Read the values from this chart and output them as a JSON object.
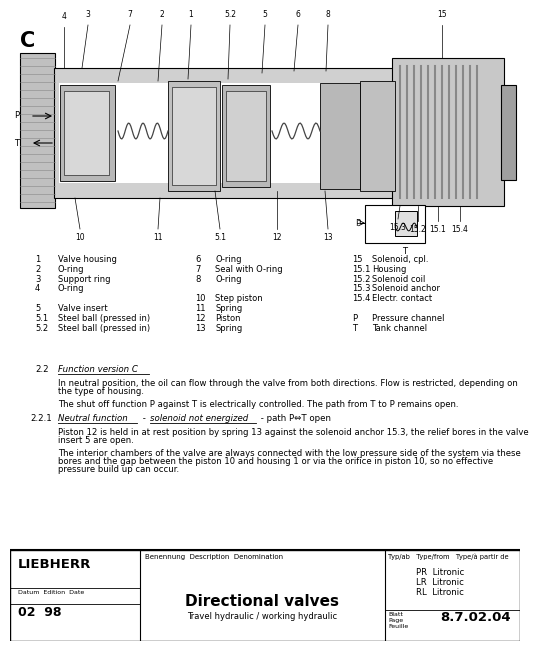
{
  "bg_color": "#ffffff",
  "legend_items_col1": [
    [
      "1",
      "Valve housing"
    ],
    [
      "2",
      "O-ring"
    ],
    [
      "3",
      "Support ring"
    ],
    [
      "4",
      "O-ring"
    ],
    [
      "",
      ""
    ],
    [
      "5",
      "Valve insert"
    ],
    [
      "5.1",
      "Steel ball (pressed in)"
    ],
    [
      "5.2",
      "Steel ball (pressed in)"
    ]
  ],
  "legend_items_col2": [
    [
      "6",
      "O-ring"
    ],
    [
      "7",
      "Seal with O-ring"
    ],
    [
      "8",
      "O-ring"
    ],
    [
      "",
      ""
    ],
    [
      "10",
      "Step piston"
    ],
    [
      "11",
      "Spring"
    ],
    [
      "12",
      "Piston"
    ],
    [
      "13",
      "Spring"
    ]
  ],
  "legend_items_col3": [
    [
      "15",
      "Solenoid, cpl."
    ],
    [
      "15.1",
      "Housing"
    ],
    [
      "15.2",
      "Solenoid coil"
    ],
    [
      "15.3",
      "Solenoid anchor"
    ],
    [
      "15.4",
      "Electr. contact"
    ],
    [
      "",
      ""
    ],
    [
      "P",
      "Pressure channel"
    ],
    [
      "T",
      "Tank channel"
    ]
  ],
  "para1": "In neutral position, the oil can flow through the valve from both directions. Flow is restricted, depending on the type of housing.",
  "para2": "The shut off function P against T is electrically controlled. The path from T to P remains open.",
  "para3": "Piston 12 is held in at rest position by spring 13 against the solenoid anchor 15.3, the relief bores in the valve insert 5 are open.",
  "para4": "The interior chambers of the valve are always connected with the low pressure side of the system via these bores and the gap between the piston 10 and housing 1 or via the orifice in piston 10, so no effective pressure build up can occur.",
  "footer_label1": "Benennung  Description  Denomination",
  "footer_label2": "Typ/ab   Type/from   Type/à partir de",
  "footer_types": [
    "PR  Litronic",
    "LR  Litronic",
    "RL  Litronic"
  ],
  "footer_date_label": "Datum  Edition  Date",
  "footer_date": "02  98",
  "footer_title": "Directional valves",
  "footer_subtitle": "Travel hydraulic / working hydraulic",
  "footer_page_label": "Blatt\nPage\nFeuille",
  "footer_page": "8.7.02.04"
}
